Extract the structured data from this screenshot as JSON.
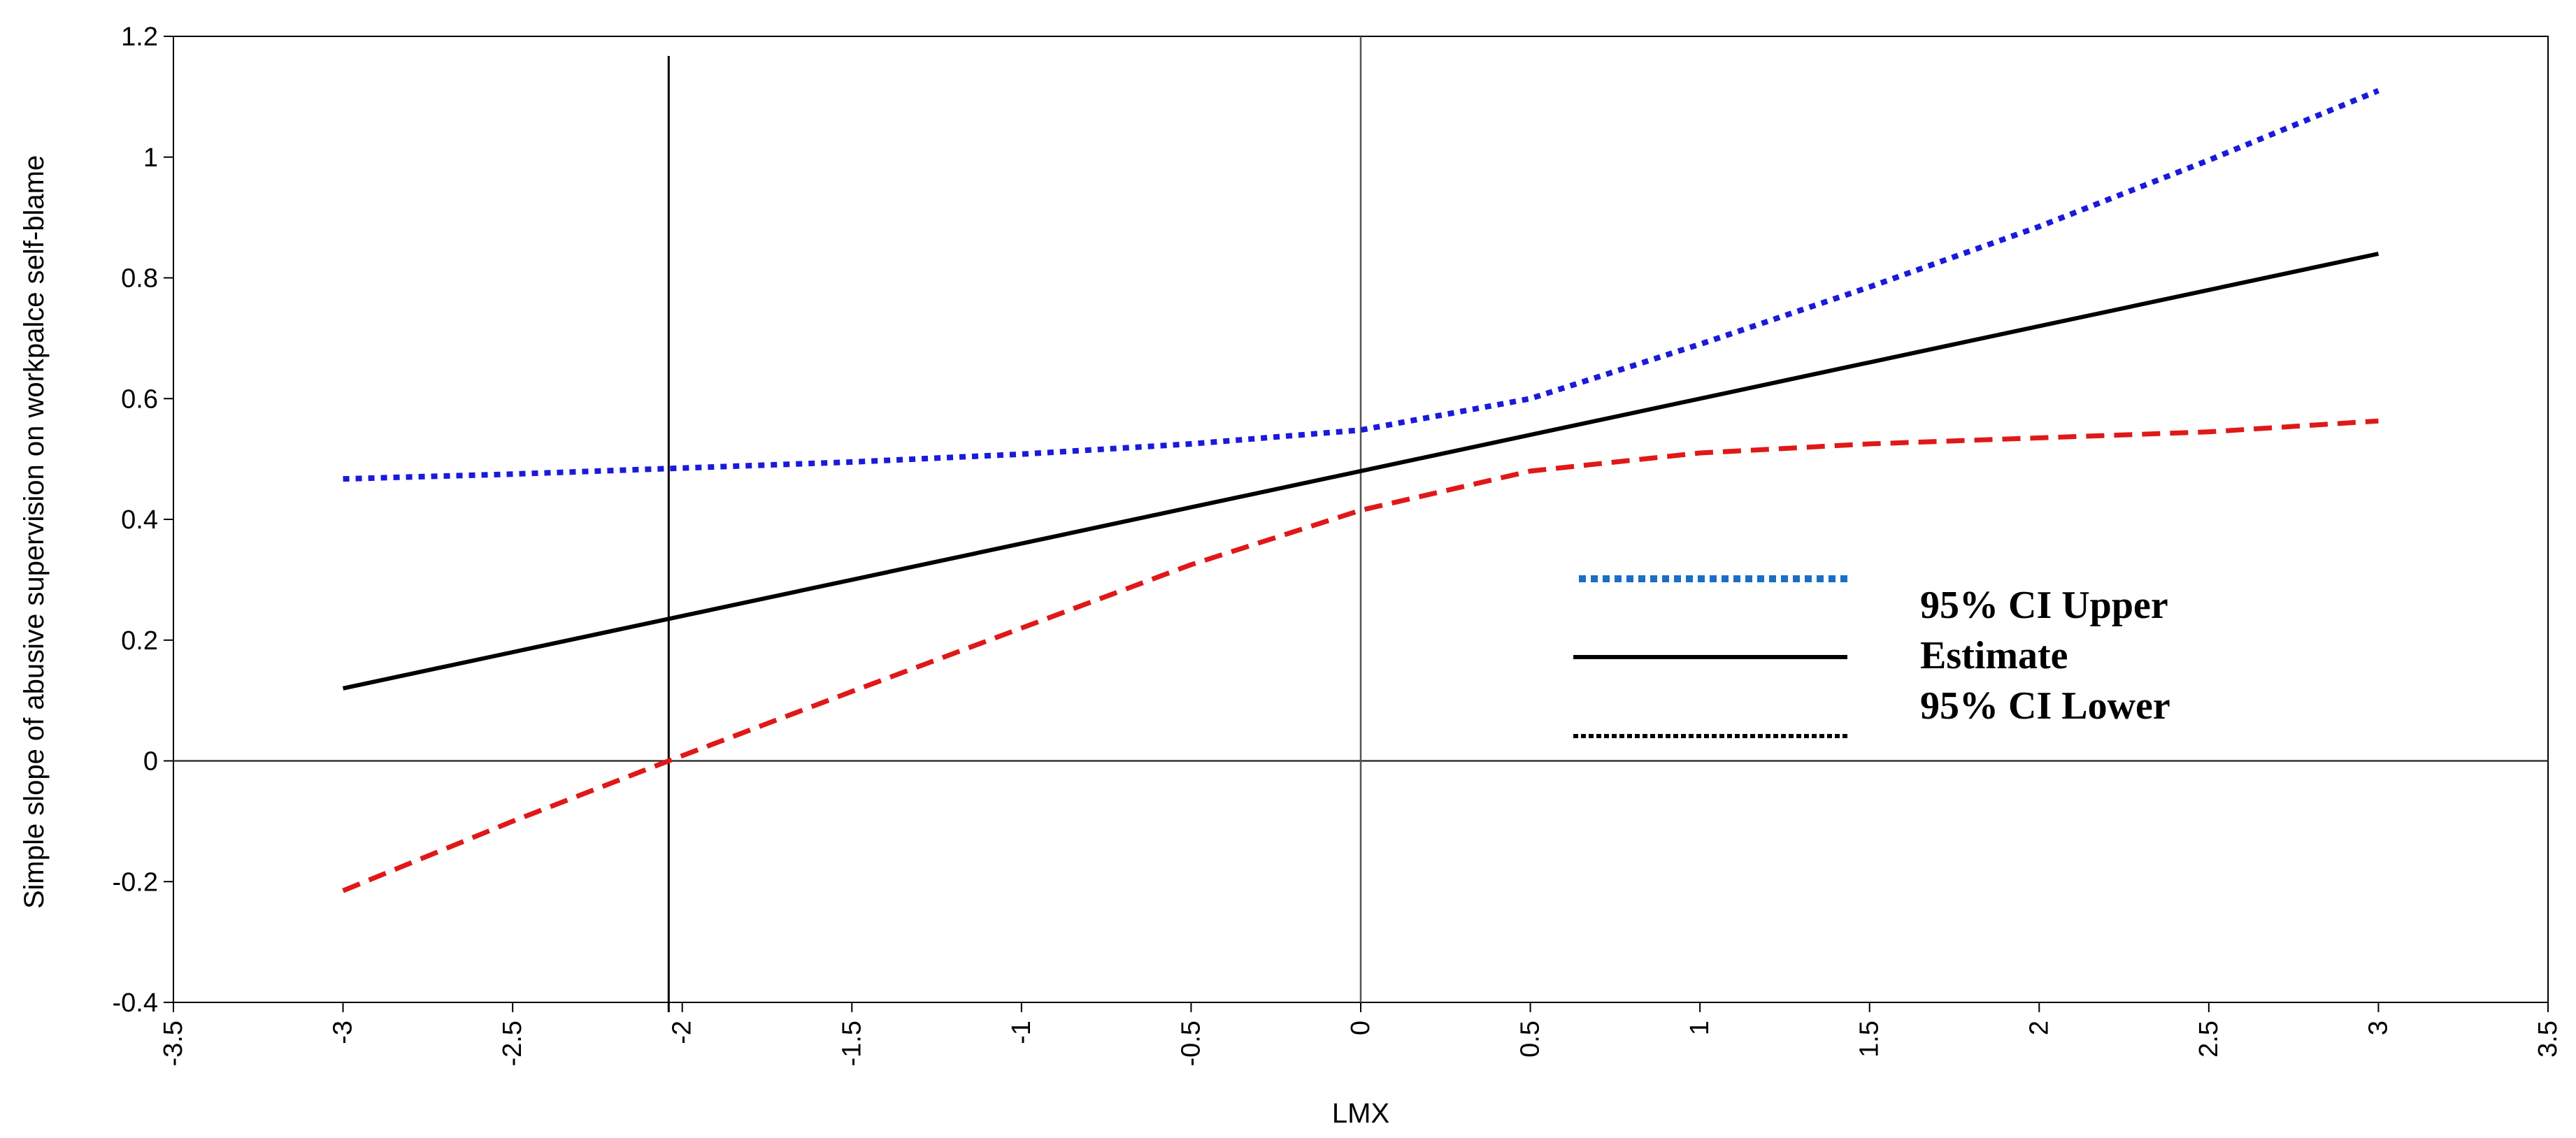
{
  "chart_data": {
    "type": "line",
    "xlabel": "LMX",
    "ylabel": "Simple slope of abusive supervision on workpalce self-blame",
    "xlim": [
      -3.5,
      3.5
    ],
    "ylim": [
      -0.4,
      1.2
    ],
    "xticks": [
      -3.5,
      -3,
      -2.5,
      -2,
      -1.5,
      -1,
      -0.5,
      0,
      0.5,
      1,
      1.5,
      2,
      2.5,
      3,
      3.5
    ],
    "xtick_labels": [
      "-3.5",
      "-3",
      "-2.5",
      "-2",
      "-1.5",
      "-1",
      "-0.5",
      "0",
      "0.5",
      "1",
      "1.5",
      "2",
      "2.5",
      "3",
      "3.5"
    ],
    "yticks": [
      -0.4,
      -0.2,
      0,
      0.2,
      0.4,
      0.6,
      0.8,
      1,
      1.2
    ],
    "ytick_labels": [
      "-0.4",
      "-0.2",
      "0",
      "0.2",
      "0.4",
      "0.6",
      "0.8",
      "1",
      "1.2"
    ],
    "grid": false,
    "reference_lines": {
      "vertical_x": [
        -2.04,
        0
      ],
      "horizontal_y": [
        0
      ]
    },
    "legend_placement": "center-right",
    "series": [
      {
        "name": "95% CI Upper",
        "style": "dotted",
        "color": "#1a1adb",
        "legend_color": "#1a6fc4",
        "x": [
          -3,
          -2.5,
          -2,
          -1.5,
          -1,
          -0.5,
          0,
          0.5,
          1,
          1.5,
          2,
          2.5,
          3
        ],
        "values": [
          0.467,
          0.475,
          0.485,
          0.495,
          0.508,
          0.525,
          0.548,
          0.6,
          0.69,
          0.785,
          0.885,
          0.995,
          1.11
        ]
      },
      {
        "name": "Estimate",
        "style": "solid",
        "color": "#000000",
        "legend_color": "#000000",
        "x": [
          -3,
          -2.5,
          -2,
          -1.5,
          -1,
          -0.5,
          0,
          0.5,
          1,
          1.5,
          2,
          2.5,
          3
        ],
        "values": [
          0.12,
          0.18,
          0.24,
          0.3,
          0.36,
          0.42,
          0.48,
          0.54,
          0.6,
          0.66,
          0.72,
          0.78,
          0.84
        ]
      },
      {
        "name": "95% CI Lower",
        "style": "dashed",
        "color": "#e01818",
        "legend_color": "#000000",
        "x": [
          -3,
          -2.5,
          -2.04,
          -1.5,
          -1,
          -0.5,
          0,
          0.5,
          1,
          1.5,
          2,
          2.5,
          3
        ],
        "values": [
          -0.215,
          -0.1,
          0.0,
          0.115,
          0.22,
          0.325,
          0.415,
          0.48,
          0.51,
          0.525,
          0.535,
          0.545,
          0.563
        ]
      }
    ]
  }
}
